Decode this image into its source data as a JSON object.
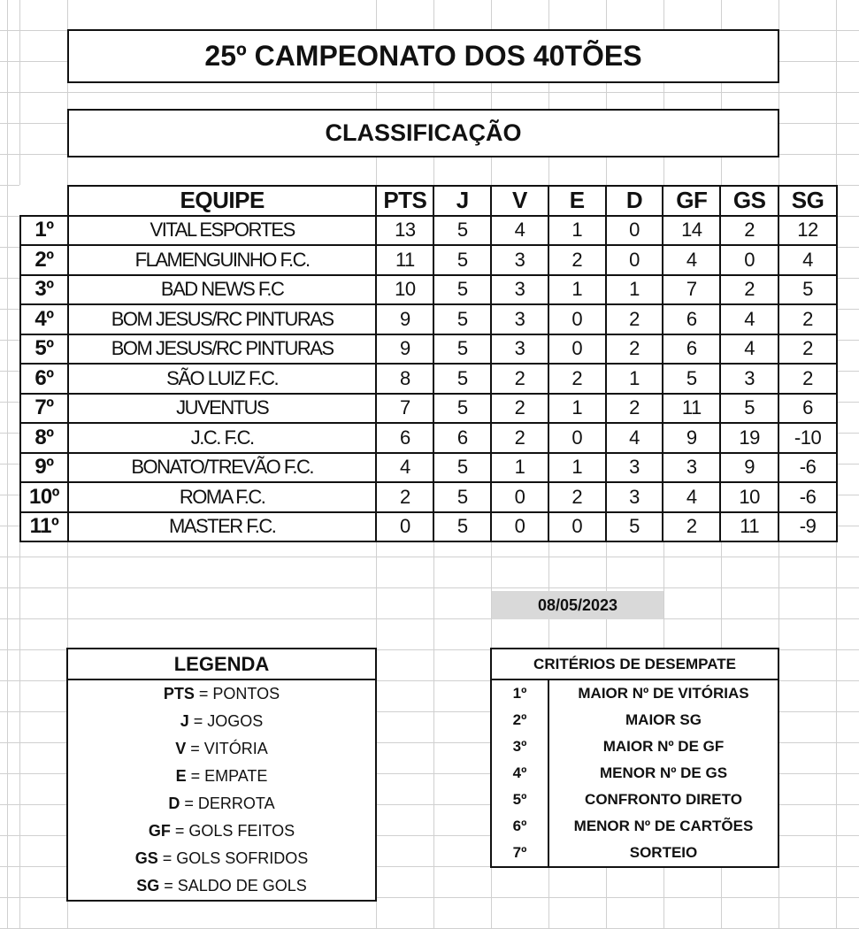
{
  "title": "25º CAMPEONATO DOS 40TÕES",
  "subtitle": "CLASSIFICAÇÃO",
  "standings": {
    "headers": [
      "EQUIPE",
      "PTS",
      "J",
      "V",
      "E",
      "D",
      "GF",
      "GS",
      "SG"
    ],
    "rows": [
      {
        "pos": "1º",
        "team": "VITAL ESPORTES",
        "pts": "13",
        "j": "5",
        "v": "4",
        "e": "1",
        "d": "0",
        "gf": "14",
        "gs": "2",
        "sg": "12"
      },
      {
        "pos": "2º",
        "team": "FLAMENGUINHO F.C.",
        "pts": "11",
        "j": "5",
        "v": "3",
        "e": "2",
        "d": "0",
        "gf": "4",
        "gs": "0",
        "sg": "4"
      },
      {
        "pos": "3º",
        "team": "BAD NEWS F.C",
        "pts": "10",
        "j": "5",
        "v": "3",
        "e": "1",
        "d": "1",
        "gf": "7",
        "gs": "2",
        "sg": "5"
      },
      {
        "pos": "4º",
        "team": "BOM JESUS/RC PINTURAS",
        "pts": "9",
        "j": "5",
        "v": "3",
        "e": "0",
        "d": "2",
        "gf": "6",
        "gs": "4",
        "sg": "2"
      },
      {
        "pos": "5º",
        "team": "BOM JESUS/RC PINTURAS",
        "pts": "9",
        "j": "5",
        "v": "3",
        "e": "0",
        "d": "2",
        "gf": "6",
        "gs": "4",
        "sg": "2"
      },
      {
        "pos": "6º",
        "team": "SÃO LUIZ F.C.",
        "pts": "8",
        "j": "5",
        "v": "2",
        "e": "2",
        "d": "1",
        "gf": "5",
        "gs": "3",
        "sg": "2"
      },
      {
        "pos": "7º",
        "team": "JUVENTUS",
        "pts": "7",
        "j": "5",
        "v": "2",
        "e": "1",
        "d": "2",
        "gf": "11",
        "gs": "5",
        "sg": "6"
      },
      {
        "pos": "8º",
        "team": "J.C. F.C.",
        "pts": "6",
        "j": "6",
        "v": "2",
        "e": "0",
        "d": "4",
        "gf": "9",
        "gs": "19",
        "sg": "-10"
      },
      {
        "pos": "9º",
        "team": "BONATO/TREVÃO F.C.",
        "pts": "4",
        "j": "5",
        "v": "1",
        "e": "1",
        "d": "3",
        "gf": "3",
        "gs": "9",
        "sg": "-6"
      },
      {
        "pos": "10º",
        "team": "ROMA F.C.",
        "pts": "2",
        "j": "5",
        "v": "0",
        "e": "2",
        "d": "3",
        "gf": "4",
        "gs": "10",
        "sg": "-6"
      },
      {
        "pos": "11º",
        "team": "MASTER F.C.",
        "pts": "0",
        "j": "5",
        "v": "0",
        "e": "0",
        "d": "5",
        "gf": "2",
        "gs": "11",
        "sg": "-9"
      }
    ]
  },
  "date": "08/05/2023",
  "legend": {
    "title": "LEGENDA",
    "items": [
      {
        "abbr": "PTS",
        "meaning": " = PONTOS"
      },
      {
        "abbr": "J",
        "meaning": " = JOGOS"
      },
      {
        "abbr": "V",
        "meaning": " = VITÓRIA"
      },
      {
        "abbr": "E",
        "meaning": " = EMPATE"
      },
      {
        "abbr": "D",
        "meaning": " = DERROTA"
      },
      {
        "abbr": "GF",
        "meaning": " = GOLS FEITOS"
      },
      {
        "abbr": "GS",
        "meaning": " = GOLS SOFRIDOS"
      },
      {
        "abbr": "SG",
        "meaning": " = SALDO DE GOLS"
      }
    ]
  },
  "criteria": {
    "title": "CRITÉRIOS DE DESEMPATE",
    "items": [
      {
        "pos": "1º",
        "text": "MAIOR Nº DE VITÓRIAS"
      },
      {
        "pos": "2º",
        "text": "MAIOR SG"
      },
      {
        "pos": "3º",
        "text": "MAIOR Nº DE GF"
      },
      {
        "pos": "4º",
        "text": "MENOR Nº DE GS"
      },
      {
        "pos": "5º",
        "text": "CONFRONTO DIRETO"
      },
      {
        "pos": "6º",
        "text": "MENOR Nº DE CARTÕES"
      },
      {
        "pos": "7º",
        "text": "SORTEIO"
      }
    ]
  }
}
